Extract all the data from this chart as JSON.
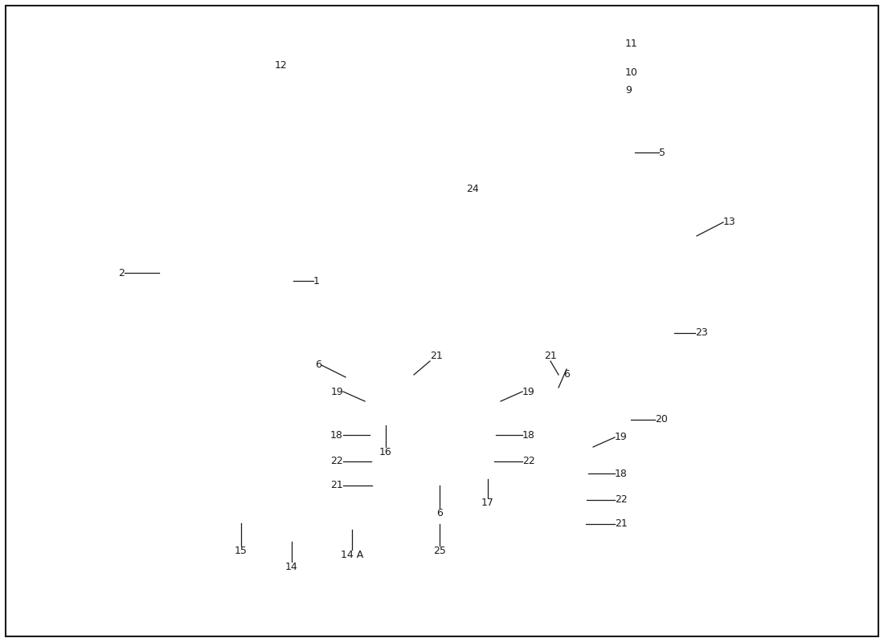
{
  "background_color": "#ffffff",
  "line_color": "#1a1a1a",
  "wm1_color": "#c8c8c8",
  "wm2_color": "#d4c840",
  "figsize": [
    11.0,
    8.0
  ],
  "dpi": 100,
  "xlim": [
    0,
    11
  ],
  "ylim": [
    0,
    8
  ]
}
